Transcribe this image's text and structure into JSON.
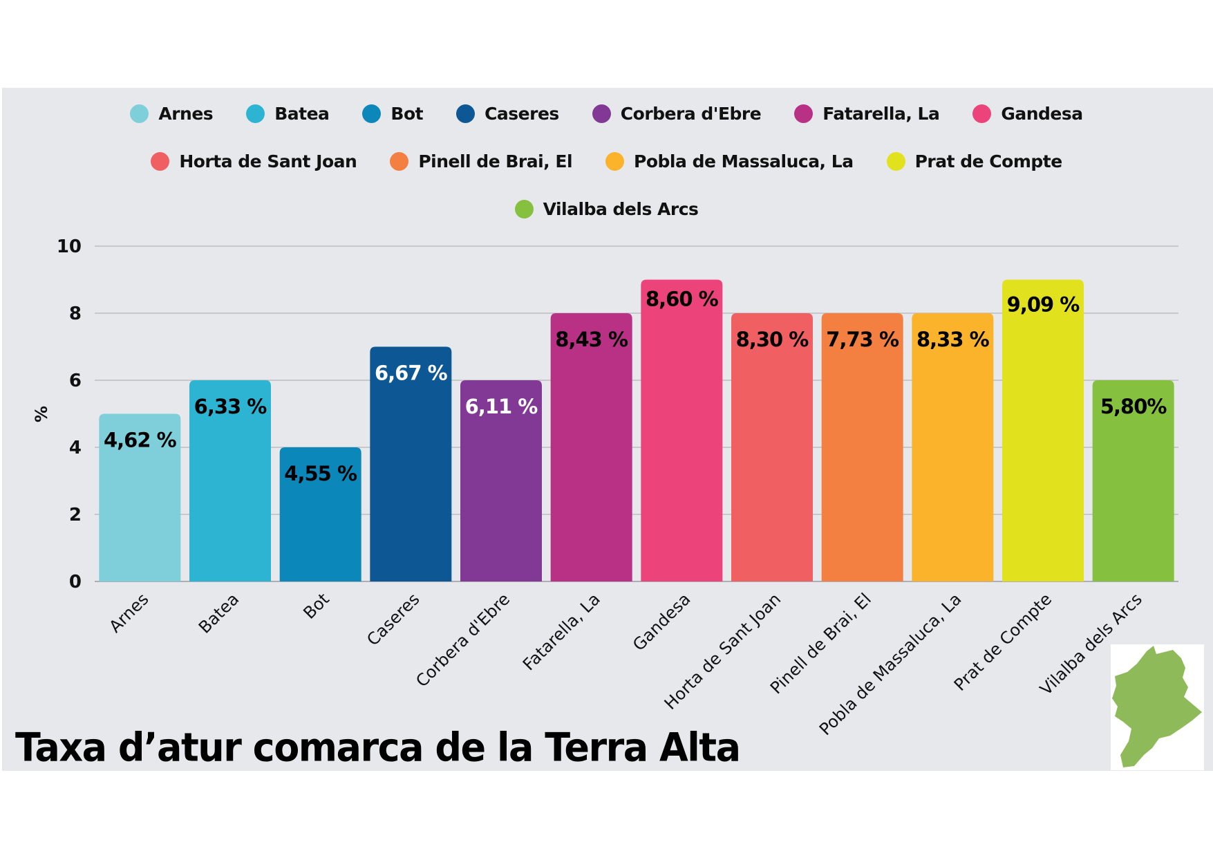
{
  "chart_data": {
    "type": "bar",
    "title": "Taxa d’atur comarca de la Terra Alta",
    "xlabel": "",
    "ylabel": "%",
    "ylim": [
      0,
      10
    ],
    "yticks": [
      "0",
      "2",
      "4",
      "6",
      "8",
      "10"
    ],
    "grid": true,
    "legend_position": "top-center",
    "categories": [
      "Arnes",
      "Batea",
      "Bot",
      "Caseres",
      "Corbera d'Ebre",
      "Fatarella, La",
      "Gandesa",
      "Horta de Sant Joan",
      "Pinell de Brai, El",
      "Pobla de Massaluca, La",
      "Prat de Compte",
      "Vilalba dels Arcs"
    ],
    "values": [
      4.62,
      6.33,
      4.55,
      6.67,
      6.11,
      8.43,
      8.6,
      8.3,
      7.73,
      8.33,
      9.09,
      5.8
    ],
    "bar_heights": [
      5,
      6,
      4,
      7,
      6,
      8,
      9,
      8,
      8,
      8,
      9,
      6
    ],
    "data_labels": [
      "4,62 %",
      "6,33 %",
      "4,55 %",
      "6,67 %",
      "6,11 %",
      "8,43 %",
      "8,60 %",
      "8,30 %",
      "7,73 %",
      "8,33 %",
      "9,09 %",
      "5,80%"
    ],
    "label_colors": [
      "#000000",
      "#000000",
      "#000000",
      "#ffffff",
      "#ffffff",
      "#000000",
      "#000000",
      "#000000",
      "#000000",
      "#000000",
      "#000000",
      "#000000"
    ],
    "colors": [
      "#7ecfda",
      "#2eb4d3",
      "#0b87ba",
      "#0d5794",
      "#813995",
      "#b83184",
      "#ec437b",
      "#f05f62",
      "#f37f40",
      "#fbb32c",
      "#e1e11e",
      "#85c03f"
    ],
    "legend": [
      [
        "Arnes",
        "Batea",
        "Bot",
        "Caseres",
        "Corbera d'Ebre",
        "Fatarella, La",
        "Gandesa"
      ],
      [
        "Horta de Sant Joan",
        "Pinell de Brai, El",
        "Pobla de Massaluca, La",
        "Prat de Compte"
      ],
      [
        "Vilalba dels Arcs"
      ]
    ]
  },
  "map": {
    "alt": "Map of Terra Alta comarca",
    "color": "#8fba5a"
  }
}
